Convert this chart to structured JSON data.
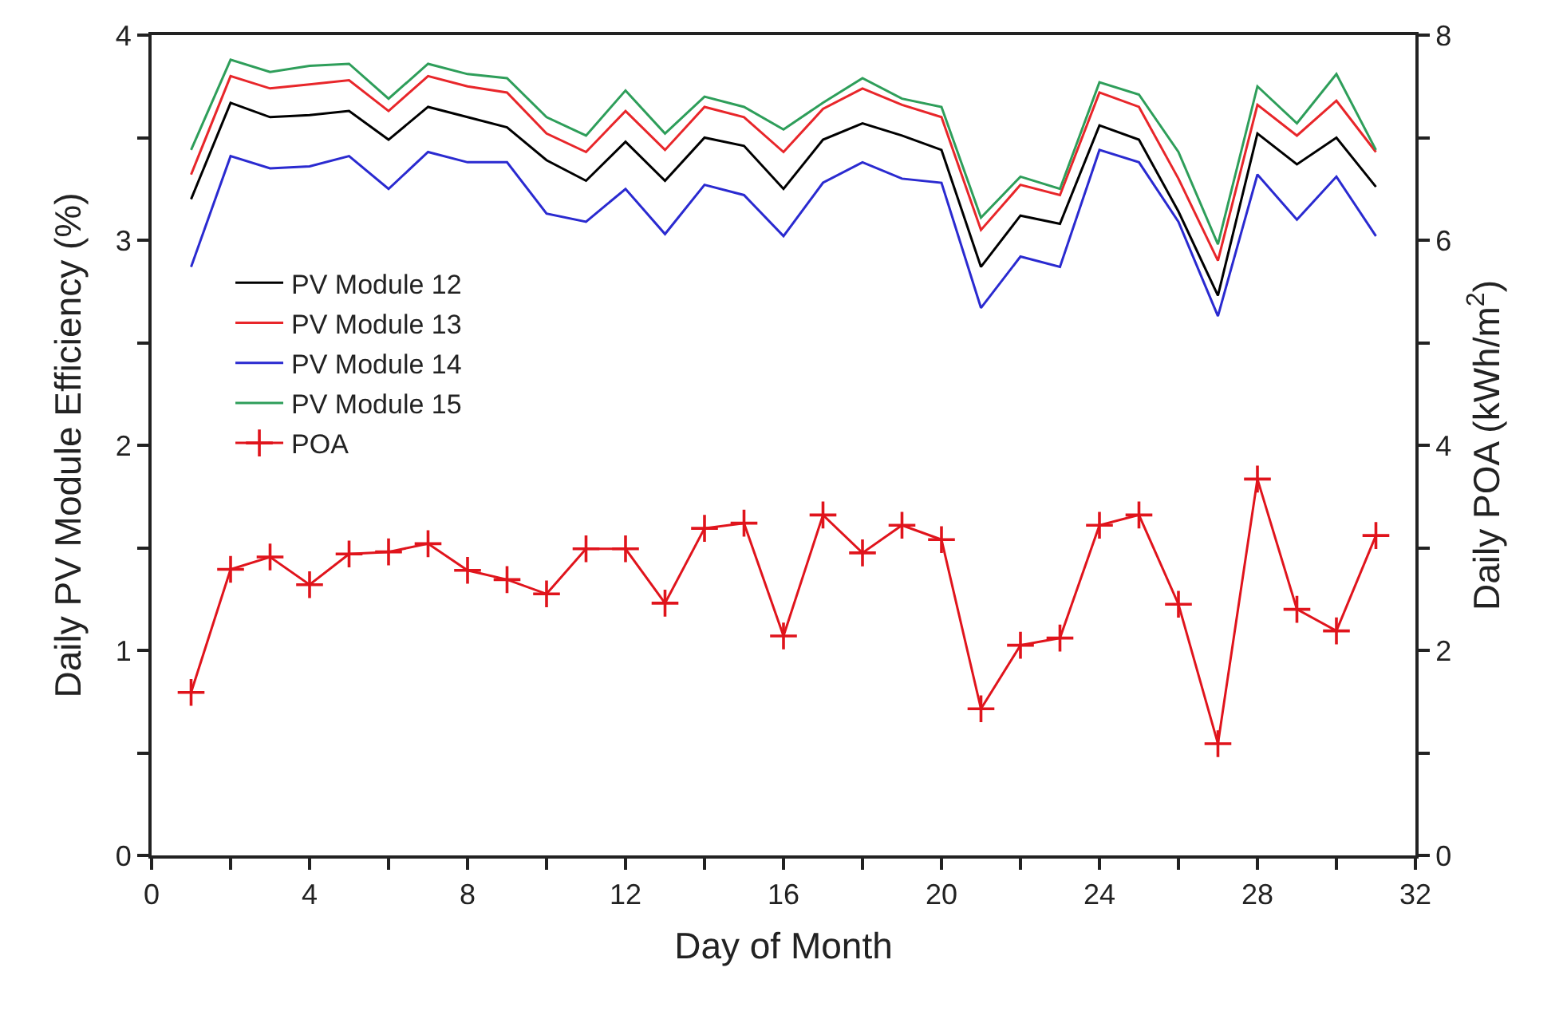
{
  "chart_data": {
    "type": "line",
    "xlabel": "Day of Month",
    "ylabel": "Daily PV Module Efficiency (%)",
    "y2label": "Daily POA (kWh/m$^{2}$)",
    "x": [
      1,
      2,
      3,
      4,
      5,
      6,
      7,
      8,
      9,
      10,
      11,
      12,
      13,
      14,
      15,
      16,
      17,
      18,
      19,
      20,
      21,
      22,
      23,
      24,
      25,
      26,
      27,
      28,
      29,
      30,
      31
    ],
    "series": [
      {
        "name": "PV Module 12",
        "color": "#000000",
        "marker": "none",
        "values": [
          3.2,
          3.67,
          3.6,
          3.61,
          3.63,
          3.49,
          3.65,
          3.6,
          3.55,
          3.39,
          3.29,
          3.48,
          3.29,
          3.5,
          3.46,
          3.25,
          3.49,
          3.57,
          3.51,
          3.44,
          2.87,
          3.12,
          3.08,
          3.56,
          3.49,
          3.14,
          2.73,
          3.52,
          3.37,
          3.5,
          3.26
        ]
      },
      {
        "name": "PV Module 13",
        "color": "#e8262a",
        "marker": "none",
        "values": [
          3.32,
          3.8,
          3.74,
          3.76,
          3.78,
          3.63,
          3.8,
          3.75,
          3.72,
          3.52,
          3.43,
          3.63,
          3.44,
          3.65,
          3.6,
          3.43,
          3.64,
          3.74,
          3.66,
          3.6,
          3.05,
          3.27,
          3.22,
          3.72,
          3.65,
          3.3,
          2.9,
          3.66,
          3.51,
          3.68,
          3.43
        ]
      },
      {
        "name": "PV Module 14",
        "color": "#2a2ad0",
        "marker": "none",
        "values": [
          2.87,
          3.41,
          3.35,
          3.36,
          3.41,
          3.25,
          3.43,
          3.38,
          3.38,
          3.13,
          3.09,
          3.25,
          3.03,
          3.27,
          3.22,
          3.02,
          3.28,
          3.38,
          3.3,
          3.28,
          2.67,
          2.92,
          2.87,
          3.44,
          3.38,
          3.09,
          2.63,
          3.32,
          3.1,
          3.31,
          3.02
        ]
      },
      {
        "name": "PV Module 15",
        "color": "#2e9e5a",
        "marker": "none",
        "values": [
          3.44,
          3.88,
          3.82,
          3.85,
          3.86,
          3.69,
          3.86,
          3.81,
          3.79,
          3.6,
          3.51,
          3.73,
          3.52,
          3.7,
          3.65,
          3.54,
          3.67,
          3.79,
          3.69,
          3.65,
          3.11,
          3.31,
          3.25,
          3.77,
          3.71,
          3.43,
          2.98,
          3.75,
          3.57,
          3.81,
          3.44
        ]
      },
      {
        "name": "POA",
        "color": "#e0141c",
        "marker": "cross",
        "axis": "y2",
        "values": [
          1.59,
          2.79,
          2.91,
          2.64,
          2.94,
          2.96,
          3.04,
          2.78,
          2.69,
          2.55,
          2.99,
          2.99,
          2.46,
          3.19,
          3.24,
          2.14,
          3.32,
          2.95,
          3.22,
          3.08,
          1.43,
          2.05,
          2.12,
          3.22,
          3.32,
          2.45,
          1.09,
          3.67,
          2.4,
          2.19,
          3.12
        ]
      }
    ],
    "xlim": [
      0,
      32
    ],
    "xticks": [
      0,
      4,
      8,
      12,
      16,
      20,
      24,
      28,
      32,
      {
        "value": 2,
        "label": null
      },
      {
        "value": 6,
        "label": null
      },
      {
        "value": 10,
        "label": null
      },
      {
        "value": 14,
        "label": null
      },
      {
        "value": 18,
        "label": null
      },
      {
        "value": 22,
        "label": null
      },
      {
        "value": 26,
        "label": null
      },
      {
        "value": 30,
        "label": null
      }
    ],
    "ylim": [
      0,
      4
    ],
    "yticks": [
      0,
      1,
      2,
      3,
      4,
      {
        "value": 0.5,
        "label": null
      },
      {
        "value": 1.5,
        "label": null
      },
      {
        "value": 2.5,
        "label": null
      },
      {
        "value": 3.5,
        "label": null
      }
    ],
    "y2lim": [
      0,
      8
    ],
    "y2ticks": [
      0,
      2,
      4,
      6,
      8,
      {
        "value": 1,
        "label": null
      },
      {
        "value": 3,
        "label": null
      },
      {
        "value": 5,
        "label": null
      },
      {
        "value": 7,
        "label": null
      }
    ],
    "legend": "left",
    "line_style": "solid"
  }
}
